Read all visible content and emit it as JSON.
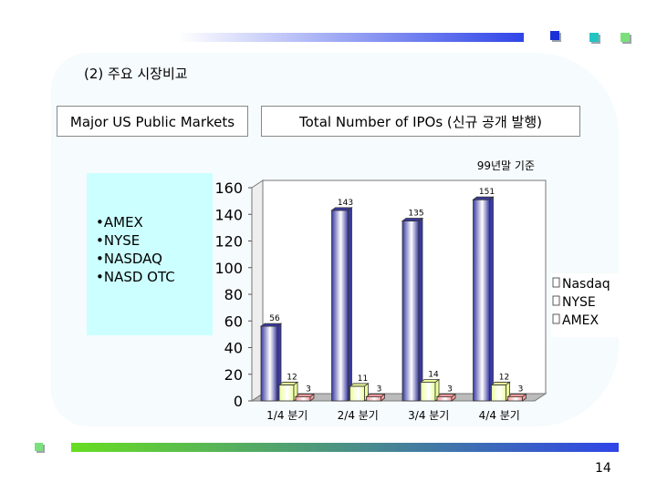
{
  "slide": {
    "section_title": "(2) 주요 시장비교",
    "markets_heading": "Major US Public Markets",
    "ipo_heading": "Total Number of IPOs (신규 공개 발행)",
    "market_list": [
      "AMEX",
      "NYSE",
      "NASDAQ",
      "NASD OTC"
    ],
    "page_number": "14"
  },
  "colors": {
    "nasdaq": "#3a3aa0",
    "nyse": "#ecff9a",
    "amex": "#ff9a9a",
    "list_box": "#ccffff"
  },
  "chart_data": {
    "type": "bar",
    "title": "",
    "note": "99년말 기준",
    "categories": [
      "1/4 분기",
      "2/4 분기",
      "3/4 분기",
      "4/4 분기"
    ],
    "series": [
      {
        "name": "Nasdaq",
        "values": [
          56,
          143,
          135,
          151
        ]
      },
      {
        "name": "NYSE",
        "values": [
          12,
          11,
          14,
          12
        ]
      },
      {
        "name": "AMEX",
        "values": [
          3,
          3,
          3,
          3
        ]
      }
    ],
    "ylim": [
      0,
      160
    ],
    "yticks": [
      "0",
      "20",
      "40",
      "60",
      "80",
      "100",
      "120",
      "140",
      "160"
    ],
    "legend_position": "right",
    "xlabel": "",
    "ylabel": ""
  }
}
